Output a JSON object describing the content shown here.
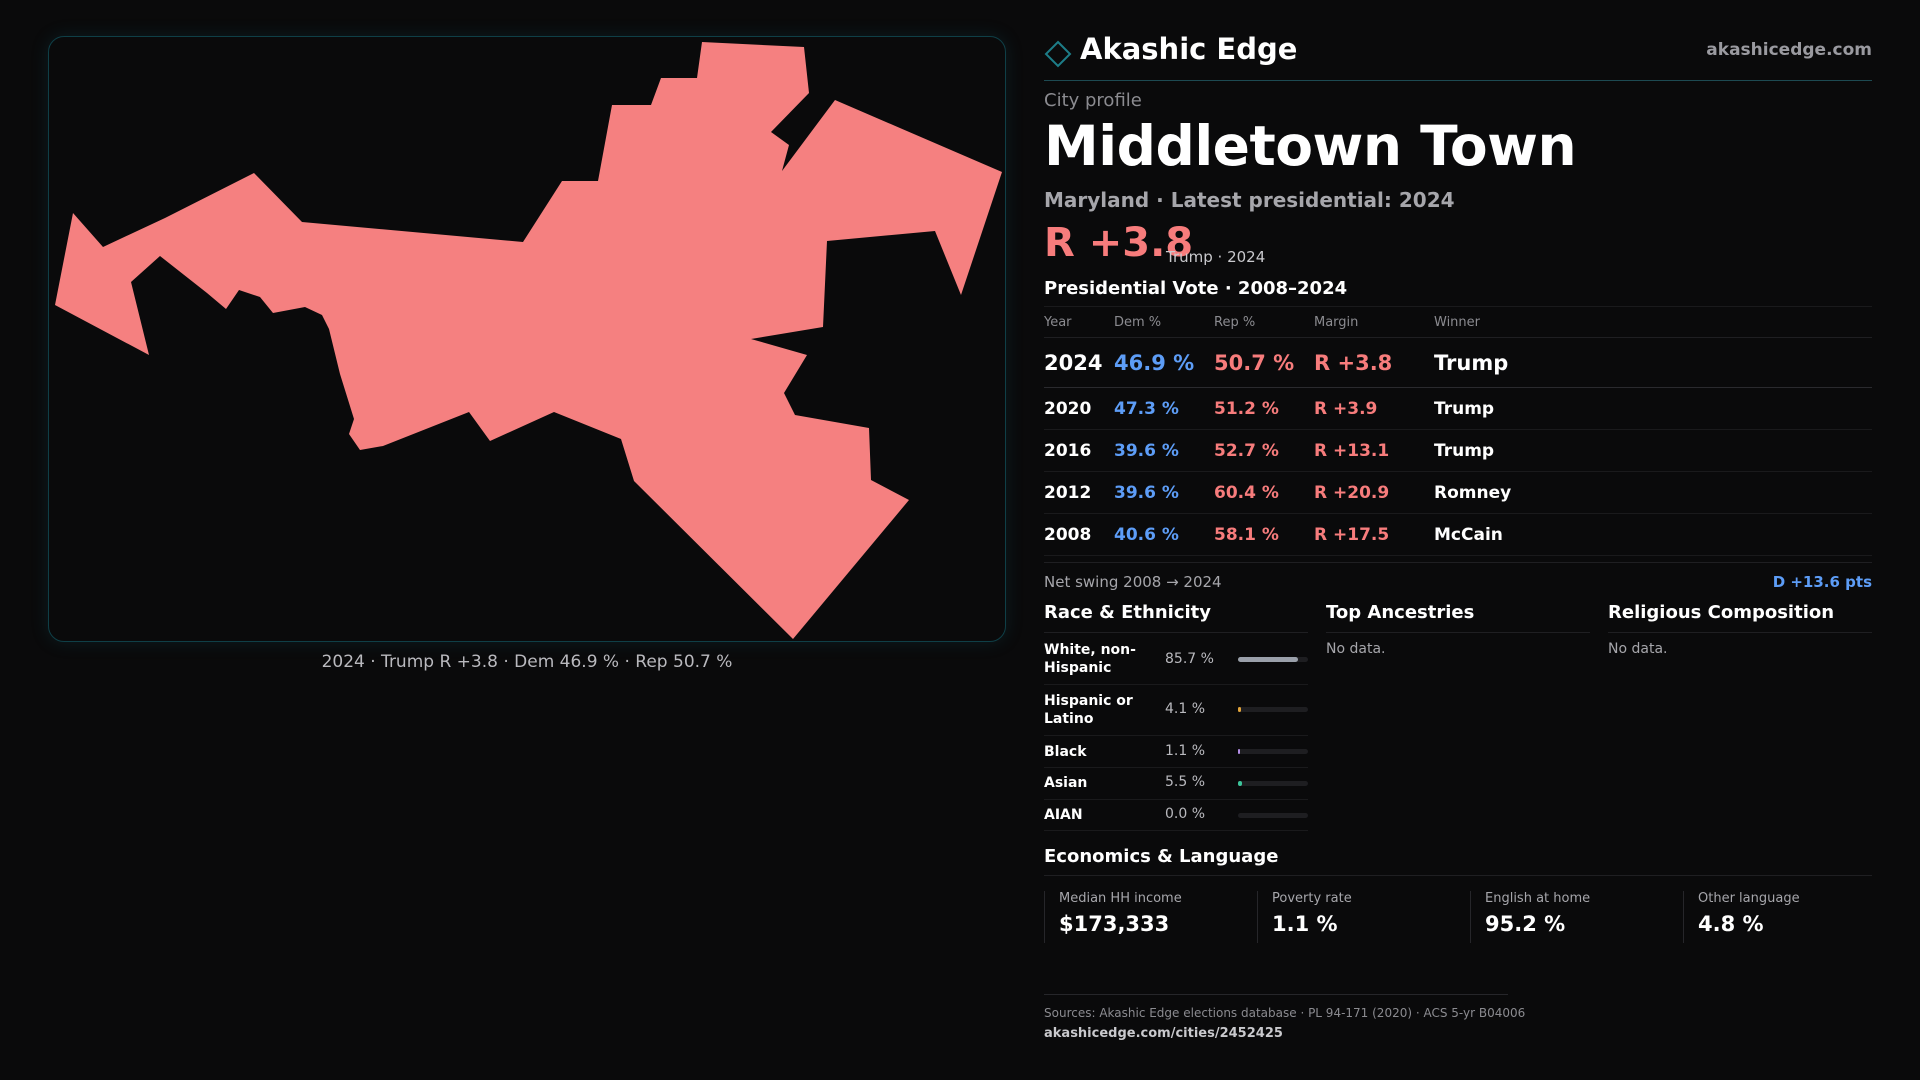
{
  "brand": {
    "name": "Akashic Edge",
    "url": "akashicedge.com",
    "accent": "#1d6f7a"
  },
  "map": {
    "fill_color": "#f58080",
    "caption": "2024 · Trump R +3.8 · Dem 46.9 % · Rep 50.7 %"
  },
  "profile": {
    "kicker": "City profile",
    "city": "Middletown Town",
    "state_line": "Maryland · Latest presidential: 2024",
    "margin": "R +3.8",
    "margin_sub": "Trump · 2024"
  },
  "votes": {
    "title": "Presidential Vote · 2008–2024",
    "headers": {
      "year": "Year",
      "dem": "Dem %",
      "rep": "Rep %",
      "margin": "Margin",
      "winner": "Winner"
    },
    "rows": [
      {
        "year": "2024",
        "dem": "46.9 %",
        "rep": "50.7 %",
        "margin": "R +3.8",
        "winner": "Trump"
      },
      {
        "year": "2020",
        "dem": "47.3 %",
        "rep": "51.2 %",
        "margin": "R +3.9",
        "winner": "Trump"
      },
      {
        "year": "2016",
        "dem": "39.6 %",
        "rep": "52.7 %",
        "margin": "R +13.1",
        "winner": "Trump"
      },
      {
        "year": "2012",
        "dem": "39.6 %",
        "rep": "60.4 %",
        "margin": "R +20.9",
        "winner": "Romney"
      },
      {
        "year": "2008",
        "dem": "40.6 %",
        "rep": "58.1 %",
        "margin": "R +17.5",
        "winner": "McCain"
      }
    ],
    "swing_label": "Net swing 2008 → 2024",
    "swing_value": "D +13.6 pts"
  },
  "race": {
    "title": "Race & Ethnicity",
    "rows": [
      {
        "name": "White, non-Hispanic",
        "pct": "85.7 %",
        "share": 0.857,
        "color": "#9aa0aa"
      },
      {
        "name": "Hispanic or Latino",
        "pct": "4.1 %",
        "share": 0.041,
        "color": "#e3a53b"
      },
      {
        "name": "Black",
        "pct": "1.1 %",
        "share": 0.011,
        "color": "#b48ee6"
      },
      {
        "name": "Asian",
        "pct": "5.5 %",
        "share": 0.055,
        "color": "#3cc49a"
      },
      {
        "name": "AIAN",
        "pct": "0.0 %",
        "share": 0.0,
        "color": "#9aa0aa"
      }
    ]
  },
  "ancestries": {
    "title": "Top Ancestries",
    "empty": "No data."
  },
  "religion": {
    "title": "Religious Composition",
    "empty": "No data."
  },
  "economics": {
    "title": "Economics & Language",
    "items": [
      {
        "label": "Median HH income",
        "value": "$173,333"
      },
      {
        "label": "Poverty rate",
        "value": "1.1 %"
      },
      {
        "label": "English at home",
        "value": "95.2 %"
      },
      {
        "label": "Other language",
        "value": "4.8 %"
      }
    ]
  },
  "footer": {
    "sources": "Sources: Akashic Edge elections database · PL 94-171 (2020) · ACS 5-yr B04006",
    "url": "akashicedge.com/cities/2452425"
  }
}
